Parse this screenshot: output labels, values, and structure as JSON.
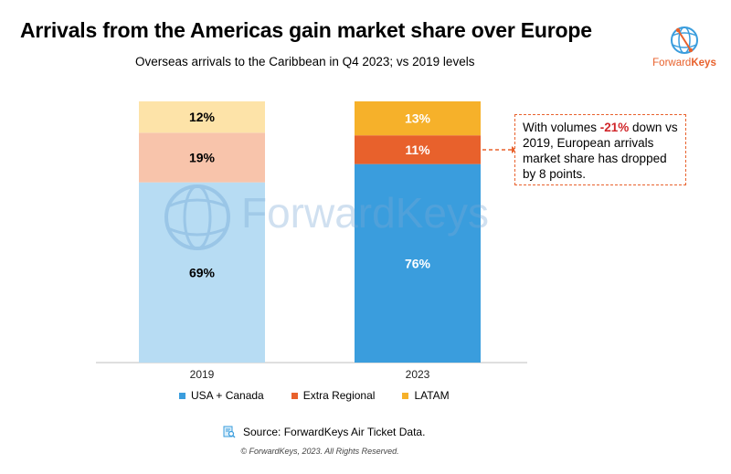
{
  "header": {
    "title": "Arrivals from the Americas gain market share over Europe",
    "subtitle": "Overseas arrivals to the Caribbean in Q4 2023; vs 2019 levels"
  },
  "brand": {
    "name_part1": "Forward",
    "name_part2": "Keys",
    "watermark": "ForwardKeys"
  },
  "callout": {
    "text_before": "With volumes ",
    "highlight": "-21%",
    "text_after": " down vs 2019, European arrivals market share has dropped by 8 points."
  },
  "source": "Source: ForwardKeys Air Ticket Data.",
  "copyright": "© ForwardKeys, 2023. All Rights Reserved.",
  "chart_data": {
    "type": "bar",
    "stacked": true,
    "categories": [
      "2019",
      "2023"
    ],
    "ylim": [
      0,
      100
    ],
    "grid": false,
    "legend_position": "bottom",
    "series": [
      {
        "name": "USA + Canada",
        "values": [
          69,
          76
        ],
        "labels": [
          "69%",
          "76%"
        ],
        "colors": [
          "#b7dcf3",
          "#3a9ddd"
        ],
        "label_colors": [
          "#000000",
          "#ffffff"
        ]
      },
      {
        "name": "Extra Regional",
        "values": [
          19,
          11
        ],
        "labels": [
          "19%",
          "11%"
        ],
        "colors": [
          "#f8c4ab",
          "#e8612c"
        ],
        "label_colors": [
          "#000000",
          "#ffffff"
        ]
      },
      {
        "name": "LATAM",
        "values": [
          12,
          13
        ],
        "labels": [
          "12%",
          "13%"
        ],
        "colors": [
          "#fde3a8",
          "#f6b12a"
        ],
        "label_colors": [
          "#000000",
          "#ffffff"
        ]
      }
    ],
    "legend_colors": [
      "#3a9ddd",
      "#e8612c",
      "#f6b12a"
    ]
  }
}
